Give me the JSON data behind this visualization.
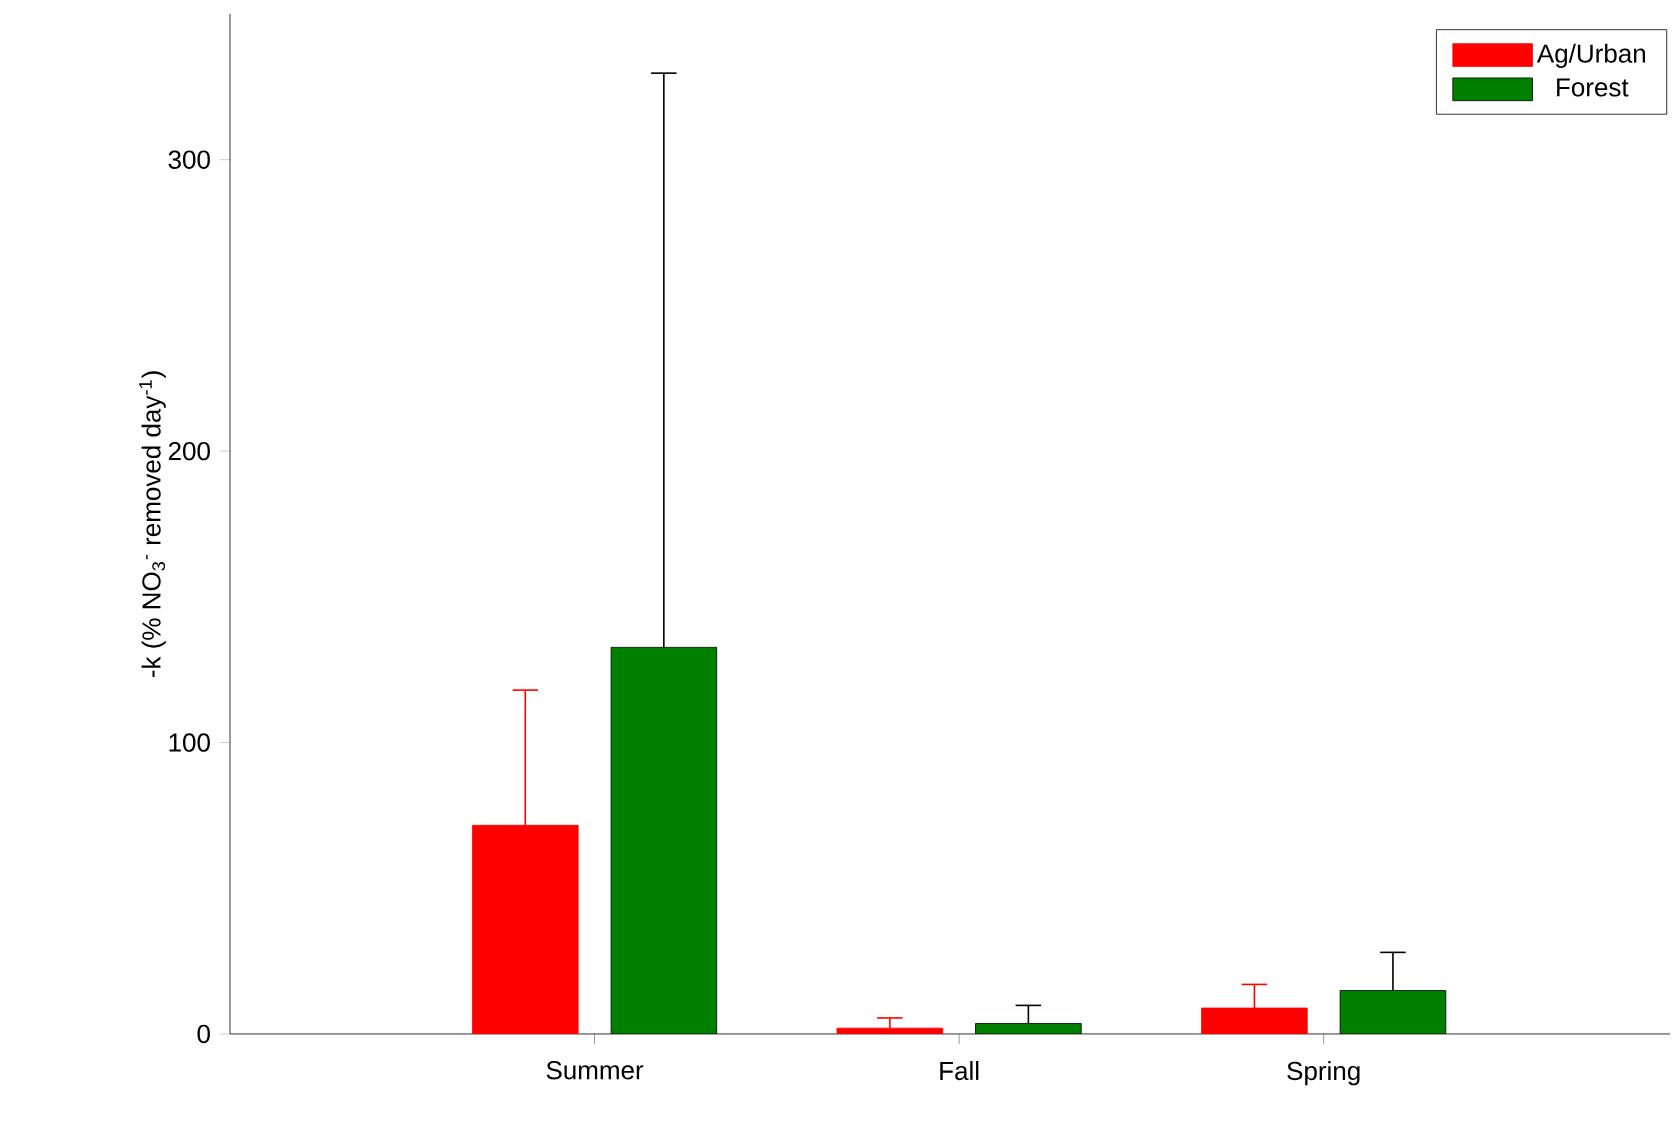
{
  "chart_data": {
    "type": "bar",
    "ylabel": "-k (% NO$_{3}$$^{-}$ removed day$^{-1}$)",
    "categories": [
      "Summer",
      "Fall",
      "Spring"
    ],
    "series": [
      {
        "name": "Ag/Urban",
        "color": "#ff0000",
        "values": [
          71.6,
          2,
          8.9
        ],
        "errors": [
          [
            71.6,
            118
          ],
          [
            2,
            5.5
          ],
          [
            8.9,
            17
          ]
        ]
      },
      {
        "name": "Forest",
        "color": "#007f00",
        "values": [
          132.7,
          3.6,
          14.9
        ],
        "errors": [
          [
            132.7,
            329.7
          ],
          [
            3.6,
            9.8
          ],
          [
            14.9,
            28
          ]
        ]
      }
    ],
    "ylim": [
      0,
      350
    ],
    "yticks": [
      0,
      100,
      200,
      300
    ],
    "legend": "top right",
    "grid": false
  }
}
